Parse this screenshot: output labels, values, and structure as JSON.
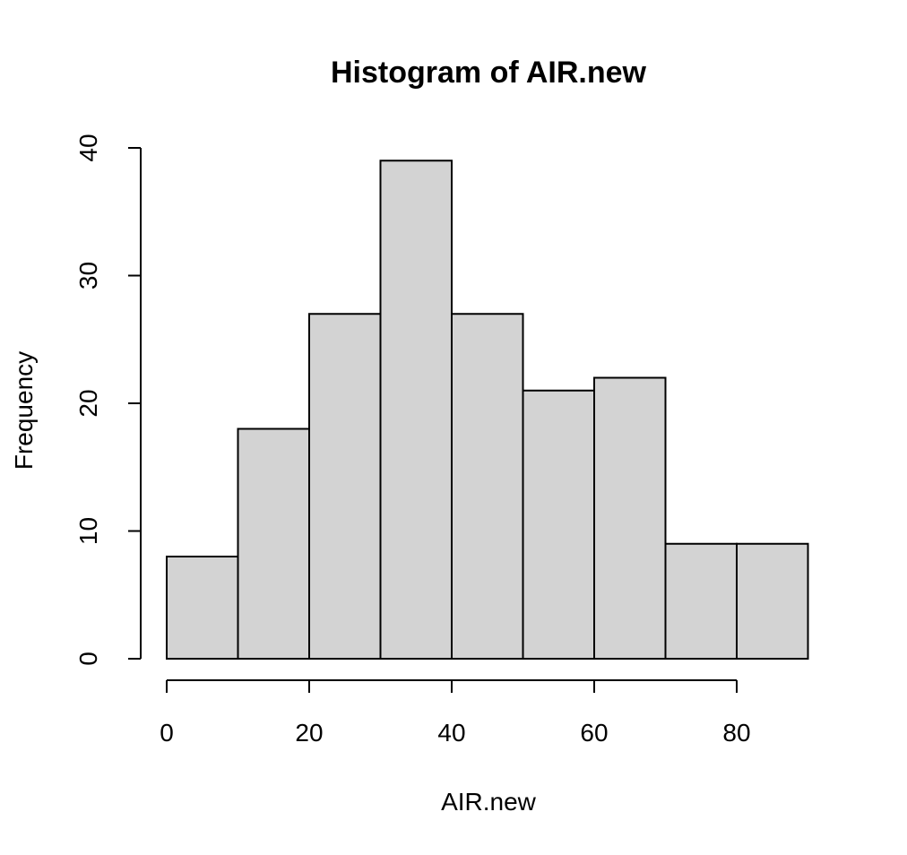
{
  "chart_data": {
    "type": "bar",
    "title": "Histogram of AIR.new",
    "xlabel": "AIR.new",
    "ylabel": "Frequency",
    "bin_edges": [
      0,
      10,
      20,
      30,
      40,
      50,
      60,
      70,
      80,
      90
    ],
    "values": [
      8,
      18,
      27,
      39,
      27,
      21,
      22,
      9,
      9
    ],
    "xlim": [
      0,
      90
    ],
    "ylim": [
      0,
      40
    ],
    "x_ticks": [
      0,
      20,
      40,
      60,
      80
    ],
    "y_ticks": [
      0,
      10,
      20,
      30,
      40
    ],
    "grid": false,
    "bar_color": "#d3d3d3",
    "edge_color": "#000000"
  }
}
